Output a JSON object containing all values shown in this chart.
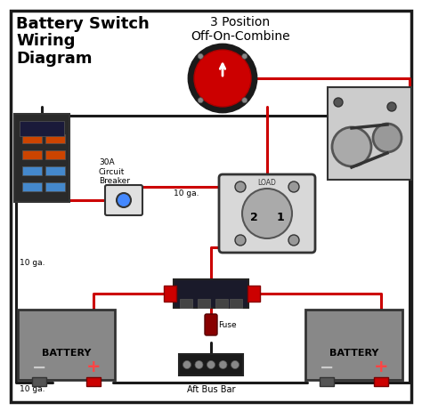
{
  "title": "Battery Switch\nWiring\nDiagram",
  "subtitle": "3 Position\nOff-On-Combine",
  "bg_color": "#ffffff",
  "border_color": "#1a1a1a",
  "wire_black": "#1a1a1a",
  "wire_red": "#cc0000",
  "battery_body": "#888888",
  "battery_label": "BATTERY",
  "bus_bar_label": "Aft Bus Bar",
  "circuit_breaker_label": "30A\nCircuit\nBreaker",
  "wire_gauge_label": "10 ga.",
  "fuse_label": "Fuse",
  "switch_label": "3 Position\nOff-On-Combine",
  "font_title_size": 13,
  "font_subtitle_size": 10
}
